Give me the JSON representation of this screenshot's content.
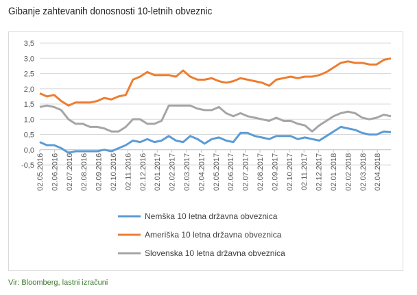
{
  "title": "Gibanje zahtevanih donosnosti 10-letnih obveznic",
  "footer": "Vir: Bloomberg, lastni izračuni",
  "chart_data": {
    "type": "line",
    "title": "Gibanje zahtevanih donosnosti 10-letnih obveznic",
    "xlabel": "",
    "ylabel": "",
    "ylim": [
      -0.5,
      3.5
    ],
    "yticks": [
      "-0,5",
      "0,0",
      "0,5",
      "1,0",
      "1,5",
      "2,0",
      "2,5",
      "3,0",
      "3,5"
    ],
    "xticks": [
      "02.05.2016",
      "02.06.2016",
      "02.07.2016",
      "02.08.2016",
      "02.09.2016",
      "02.10.2016",
      "02.11.2016",
      "02.12.2016",
      "02.01.2017",
      "02.02.2017",
      "02.03.2017",
      "02.04.2017",
      "02.05.2017",
      "02.06.2017",
      "02.07.2017",
      "02.08.2017",
      "02.09.2017",
      "02.10.2017",
      "02.11.2017",
      "02.12.2017",
      "02.01.2018",
      "02.02.2018",
      "02.03.2018",
      "02.04.2018"
    ],
    "grid": true,
    "legend": "bottom",
    "x_start": "2016-05",
    "x_end": "2018-05",
    "sampling": "semi-monthly",
    "series": [
      {
        "name": "Nemška 10 letna državna obveznica",
        "color": "#5b9bd5",
        "values": [
          0.25,
          0.15,
          0.15,
          0.05,
          -0.1,
          -0.05,
          -0.05,
          -0.05,
          -0.05,
          0.0,
          -0.05,
          0.05,
          0.15,
          0.3,
          0.25,
          0.35,
          0.25,
          0.3,
          0.45,
          0.3,
          0.25,
          0.45,
          0.35,
          0.2,
          0.35,
          0.4,
          0.3,
          0.25,
          0.55,
          0.55,
          0.45,
          0.4,
          0.35,
          0.45,
          0.45,
          0.45,
          0.35,
          0.4,
          0.35,
          0.3,
          0.45,
          0.6,
          0.75,
          0.7,
          0.65,
          0.55,
          0.5,
          0.5,
          0.6,
          0.58
        ]
      },
      {
        "name": "Ameriška 10 letna državna obveznica",
        "color": "#ed7d31",
        "values": [
          1.85,
          1.75,
          1.8,
          1.6,
          1.45,
          1.55,
          1.55,
          1.55,
          1.6,
          1.7,
          1.65,
          1.75,
          1.8,
          2.3,
          2.4,
          2.55,
          2.45,
          2.45,
          2.45,
          2.4,
          2.6,
          2.4,
          2.3,
          2.3,
          2.35,
          2.25,
          2.2,
          2.25,
          2.35,
          2.3,
          2.25,
          2.2,
          2.1,
          2.3,
          2.35,
          2.4,
          2.35,
          2.4,
          2.4,
          2.45,
          2.55,
          2.7,
          2.85,
          2.9,
          2.85,
          2.85,
          2.8,
          2.8,
          2.95,
          3.0
        ]
      },
      {
        "name": "Slovenska 10 letna državna obveznica",
        "color": "#a5a5a5",
        "values": [
          1.4,
          1.45,
          1.4,
          1.3,
          1.0,
          0.85,
          0.85,
          0.75,
          0.75,
          0.7,
          0.6,
          0.6,
          0.75,
          1.0,
          1.0,
          0.85,
          0.85,
          0.95,
          1.45,
          1.45,
          1.45,
          1.45,
          1.35,
          1.3,
          1.3,
          1.4,
          1.2,
          1.1,
          1.2,
          1.1,
          1.05,
          1.0,
          0.95,
          1.05,
          0.95,
          0.95,
          0.85,
          0.8,
          0.6,
          0.8,
          0.95,
          1.1,
          1.2,
          1.25,
          1.2,
          1.05,
          1.0,
          1.05,
          1.15,
          1.1
        ]
      }
    ]
  }
}
